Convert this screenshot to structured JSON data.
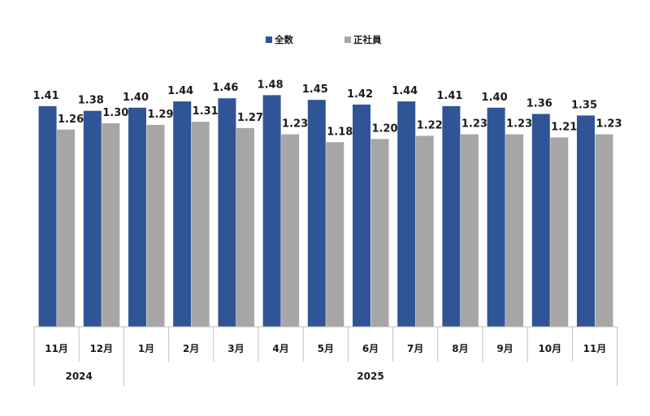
{
  "chart_data": {
    "type": "bar",
    "title": "",
    "xlabel": "",
    "ylabel": "",
    "ylim": [
      0,
      1.6
    ],
    "grid": false,
    "legend_position": "top-center",
    "categories": [
      "11月",
      "12月",
      "1月",
      "2月",
      "3月",
      "4月",
      "5月",
      "6月",
      "7月",
      "8月",
      "9月",
      "10月",
      "11月"
    ],
    "year_groups": [
      {
        "label": "2024",
        "count": 2
      },
      {
        "label": "2025",
        "count": 11
      }
    ],
    "series": [
      {
        "name": "全数",
        "color": "#2f5597",
        "values": [
          1.41,
          1.38,
          1.4,
          1.44,
          1.46,
          1.48,
          1.45,
          1.42,
          1.44,
          1.41,
          1.4,
          1.36,
          1.35
        ]
      },
      {
        "name": "正社員",
        "color": "#a6a6a6",
        "values": [
          1.26,
          1.3,
          1.29,
          1.31,
          1.27,
          1.23,
          1.18,
          1.2,
          1.22,
          1.23,
          1.23,
          1.21,
          1.23
        ]
      }
    ]
  }
}
